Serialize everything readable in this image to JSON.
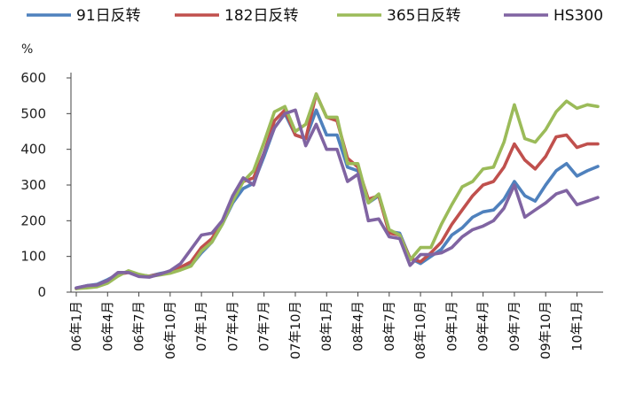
{
  "chart_data": {
    "type": "line",
    "unit": "%",
    "ylim": [
      0,
      600
    ],
    "yticks": [
      0,
      100,
      200,
      300,
      400,
      500,
      600
    ],
    "x_dates": [
      "06年1月",
      "06年2月",
      "06年3月",
      "06年4月",
      "06年5月",
      "06年6月",
      "06年7月",
      "06年8月",
      "06年9月",
      "06年10月",
      "06年11月",
      "06年12月",
      "07年1月",
      "07年2月",
      "07年3月",
      "07年4月",
      "07年5月",
      "07年6月",
      "07年7月",
      "07年8月",
      "07年9月",
      "07年10月",
      "07年11月",
      "07年12月",
      "08年1月",
      "08年2月",
      "08年3月",
      "08年4月",
      "08年5月",
      "08年6月",
      "08年7月",
      "08年8月",
      "08年9月",
      "08年10月",
      "08年11月",
      "08年12月",
      "09年1月",
      "09年2月",
      "09年3月",
      "09年4月",
      "09年5月",
      "09年6月",
      "09年7月",
      "09年8月",
      "09年9月",
      "09年10月",
      "09年11月",
      "09年12月",
      "10年1月",
      "10年2月",
      "10年3月"
    ],
    "x_tick_labels": [
      "06年1月",
      "06年4月",
      "06年7月",
      "06年10月",
      "07年1月",
      "07年4月",
      "07年7月",
      "07年10月",
      "08年1月",
      "08年4月",
      "08年7月",
      "08年10月",
      "09年1月",
      "09年4月",
      "09年7月",
      "09年10月",
      "10年1月"
    ],
    "legend_position": "top",
    "grid": false,
    "series": [
      {
        "name": "91日反转",
        "color": "#4f81bd",
        "values": [
          12,
          18,
          22,
          35,
          50,
          58,
          48,
          45,
          52,
          58,
          64,
          75,
          110,
          140,
          190,
          250,
          290,
          305,
          380,
          460,
          500,
          440,
          430,
          510,
          440,
          440,
          350,
          340,
          250,
          270,
          170,
          165,
          95,
          80,
          100,
          120,
          160,
          180,
          210,
          225,
          230,
          260,
          310,
          270,
          255,
          300,
          340,
          360,
          325,
          340,
          352
        ]
      },
      {
        "name": "182日反转",
        "color": "#c0504d",
        "values": [
          10,
          15,
          20,
          32,
          50,
          55,
          47,
          45,
          50,
          58,
          70,
          85,
          125,
          150,
          195,
          265,
          310,
          320,
          390,
          480,
          510,
          440,
          430,
          555,
          490,
          480,
          375,
          350,
          260,
          270,
          165,
          160,
          95,
          85,
          110,
          140,
          190,
          230,
          270,
          300,
          310,
          350,
          415,
          370,
          345,
          380,
          435,
          440,
          405,
          415,
          415
        ]
      },
      {
        "name": "365日反转",
        "color": "#9bbb59",
        "values": [
          10,
          12,
          15,
          25,
          45,
          60,
          50,
          44,
          48,
          53,
          62,
          73,
          115,
          140,
          190,
          255,
          310,
          340,
          420,
          505,
          520,
          450,
          470,
          555,
          490,
          490,
          360,
          360,
          250,
          275,
          175,
          160,
          90,
          125,
          125,
          190,
          245,
          295,
          310,
          345,
          350,
          420,
          525,
          430,
          420,
          455,
          505,
          535,
          515,
          525,
          520
        ]
      },
      {
        "name": "HS300",
        "color": "#8064a2",
        "values": [
          12,
          18,
          20,
          32,
          55,
          55,
          44,
          42,
          50,
          60,
          80,
          120,
          160,
          165,
          200,
          270,
          320,
          300,
          390,
          460,
          500,
          510,
          410,
          470,
          400,
          400,
          310,
          330,
          200,
          205,
          155,
          150,
          75,
          105,
          105,
          110,
          125,
          155,
          175,
          185,
          200,
          235,
          300,
          210,
          230,
          250,
          275,
          285,
          245,
          255,
          265
        ]
      }
    ]
  }
}
